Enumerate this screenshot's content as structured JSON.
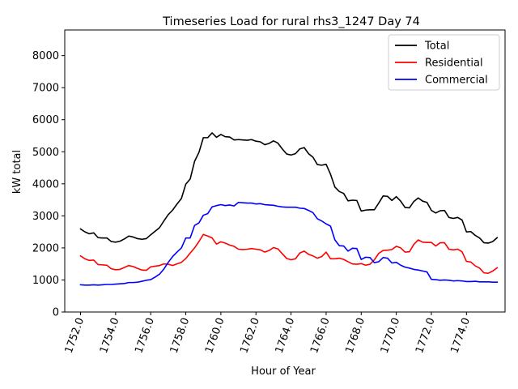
{
  "chart_data": {
    "type": "line",
    "title": "Timeseries Load for rural rhs3_1247  Day 74",
    "xlabel": "Hour of Year",
    "ylabel": "kW total",
    "xlim": [
      1751.1,
      1776.2
    ],
    "ylim": [
      0,
      8800
    ],
    "xticks": [
      1752,
      1754,
      1756,
      1758,
      1760,
      1762,
      1764,
      1766,
      1768,
      1770,
      1772,
      1774
    ],
    "xtick_labels": [
      "1752.0",
      "1754.0",
      "1756.0",
      "1758.0",
      "1760.0",
      "1762.0",
      "1764.0",
      "1766.0",
      "1768.0",
      "1770.0",
      "1772.0",
      "1774.0"
    ],
    "yticks": [
      0,
      1000,
      2000,
      3000,
      4000,
      5000,
      6000,
      7000,
      8000
    ],
    "ytick_labels": [
      "0",
      "1000",
      "2000",
      "3000",
      "4000",
      "5000",
      "6000",
      "7000",
      "8000"
    ],
    "legend": {
      "position": "top-right",
      "entries": [
        "Total",
        "Residential",
        "Commercial"
      ]
    },
    "series": [
      {
        "name": "Total",
        "color": "#000000",
        "points": [
          [
            1752.0,
            2590
          ],
          [
            1752.25,
            2500
          ],
          [
            1752.5,
            2440
          ],
          [
            1752.75,
            2470
          ],
          [
            1753.0,
            2320
          ],
          [
            1753.25,
            2310
          ],
          [
            1753.5,
            2310
          ],
          [
            1753.75,
            2200
          ],
          [
            1754.0,
            2180
          ],
          [
            1754.25,
            2210
          ],
          [
            1754.5,
            2280
          ],
          [
            1754.75,
            2370
          ],
          [
            1755.0,
            2340
          ],
          [
            1755.25,
            2290
          ],
          [
            1755.5,
            2270
          ],
          [
            1755.75,
            2290
          ],
          [
            1756.0,
            2410
          ],
          [
            1756.25,
            2520
          ],
          [
            1756.5,
            2630
          ],
          [
            1756.75,
            2840
          ],
          [
            1757.0,
            3040
          ],
          [
            1757.25,
            3180
          ],
          [
            1757.5,
            3370
          ],
          [
            1757.75,
            3540
          ],
          [
            1758.0,
            3990
          ],
          [
            1758.25,
            4150
          ],
          [
            1758.5,
            4700
          ],
          [
            1758.75,
            4980
          ],
          [
            1759.0,
            5440
          ],
          [
            1759.25,
            5440
          ],
          [
            1759.5,
            5590
          ],
          [
            1759.75,
            5450
          ],
          [
            1760.0,
            5540
          ],
          [
            1760.25,
            5470
          ],
          [
            1760.5,
            5460
          ],
          [
            1760.75,
            5370
          ],
          [
            1761.0,
            5380
          ],
          [
            1761.25,
            5370
          ],
          [
            1761.5,
            5360
          ],
          [
            1761.75,
            5380
          ],
          [
            1762.0,
            5330
          ],
          [
            1762.25,
            5310
          ],
          [
            1762.5,
            5220
          ],
          [
            1762.75,
            5260
          ],
          [
            1763.0,
            5340
          ],
          [
            1763.25,
            5270
          ],
          [
            1763.5,
            5090
          ],
          [
            1763.75,
            4930
          ],
          [
            1764.0,
            4900
          ],
          [
            1764.25,
            4940
          ],
          [
            1764.5,
            5090
          ],
          [
            1764.75,
            5130
          ],
          [
            1765.0,
            4940
          ],
          [
            1765.25,
            4830
          ],
          [
            1765.5,
            4600
          ],
          [
            1765.75,
            4580
          ],
          [
            1766.0,
            4610
          ],
          [
            1766.25,
            4300
          ],
          [
            1766.5,
            3900
          ],
          [
            1766.75,
            3760
          ],
          [
            1767.0,
            3700
          ],
          [
            1767.25,
            3470
          ],
          [
            1767.5,
            3490
          ],
          [
            1767.75,
            3480
          ],
          [
            1768.0,
            3150
          ],
          [
            1768.25,
            3180
          ],
          [
            1768.5,
            3190
          ],
          [
            1768.75,
            3190
          ],
          [
            1769.0,
            3400
          ],
          [
            1769.25,
            3620
          ],
          [
            1769.5,
            3610
          ],
          [
            1769.75,
            3480
          ],
          [
            1770.0,
            3600
          ],
          [
            1770.25,
            3460
          ],
          [
            1770.5,
            3260
          ],
          [
            1770.75,
            3250
          ],
          [
            1771.0,
            3450
          ],
          [
            1771.25,
            3560
          ],
          [
            1771.5,
            3460
          ],
          [
            1771.75,
            3420
          ],
          [
            1772.0,
            3170
          ],
          [
            1772.25,
            3090
          ],
          [
            1772.5,
            3160
          ],
          [
            1772.75,
            3170
          ],
          [
            1773.0,
            2950
          ],
          [
            1773.25,
            2920
          ],
          [
            1773.5,
            2950
          ],
          [
            1773.75,
            2870
          ],
          [
            1774.0,
            2500
          ],
          [
            1774.25,
            2510
          ],
          [
            1774.5,
            2390
          ],
          [
            1774.75,
            2310
          ],
          [
            1775.0,
            2160
          ],
          [
            1775.25,
            2150
          ],
          [
            1775.5,
            2200
          ],
          [
            1775.75,
            2320
          ]
        ]
      },
      {
        "name": "Residential",
        "color": "#ff0000",
        "points": [
          [
            1752.0,
            1750
          ],
          [
            1752.25,
            1660
          ],
          [
            1752.5,
            1610
          ],
          [
            1752.75,
            1620
          ],
          [
            1753.0,
            1480
          ],
          [
            1753.25,
            1470
          ],
          [
            1753.5,
            1460
          ],
          [
            1753.75,
            1350
          ],
          [
            1754.0,
            1320
          ],
          [
            1754.25,
            1330
          ],
          [
            1754.5,
            1390
          ],
          [
            1754.75,
            1450
          ],
          [
            1755.0,
            1420
          ],
          [
            1755.25,
            1360
          ],
          [
            1755.5,
            1310
          ],
          [
            1755.75,
            1300
          ],
          [
            1756.0,
            1410
          ],
          [
            1756.25,
            1430
          ],
          [
            1756.5,
            1450
          ],
          [
            1756.75,
            1500
          ],
          [
            1757.0,
            1490
          ],
          [
            1757.25,
            1450
          ],
          [
            1757.5,
            1500
          ],
          [
            1757.75,
            1550
          ],
          [
            1758.0,
            1670
          ],
          [
            1758.25,
            1840
          ],
          [
            1758.5,
            2000
          ],
          [
            1758.75,
            2200
          ],
          [
            1759.0,
            2420
          ],
          [
            1759.25,
            2370
          ],
          [
            1759.5,
            2310
          ],
          [
            1759.75,
            2120
          ],
          [
            1760.0,
            2190
          ],
          [
            1760.25,
            2150
          ],
          [
            1760.5,
            2090
          ],
          [
            1760.75,
            2050
          ],
          [
            1761.0,
            1960
          ],
          [
            1761.25,
            1950
          ],
          [
            1761.5,
            1960
          ],
          [
            1761.75,
            1980
          ],
          [
            1762.0,
            1960
          ],
          [
            1762.25,
            1940
          ],
          [
            1762.5,
            1870
          ],
          [
            1762.75,
            1920
          ],
          [
            1763.0,
            2010
          ],
          [
            1763.25,
            1970
          ],
          [
            1763.5,
            1820
          ],
          [
            1763.75,
            1670
          ],
          [
            1764.0,
            1630
          ],
          [
            1764.25,
            1660
          ],
          [
            1764.5,
            1840
          ],
          [
            1764.75,
            1900
          ],
          [
            1765.0,
            1800
          ],
          [
            1765.25,
            1750
          ],
          [
            1765.5,
            1680
          ],
          [
            1765.75,
            1730
          ],
          [
            1766.0,
            1870
          ],
          [
            1766.25,
            1660
          ],
          [
            1766.5,
            1660
          ],
          [
            1766.75,
            1680
          ],
          [
            1767.0,
            1640
          ],
          [
            1767.25,
            1570
          ],
          [
            1767.5,
            1500
          ],
          [
            1767.75,
            1490
          ],
          [
            1768.0,
            1510
          ],
          [
            1768.25,
            1460
          ],
          [
            1768.5,
            1490
          ],
          [
            1768.75,
            1630
          ],
          [
            1769.0,
            1830
          ],
          [
            1769.25,
            1920
          ],
          [
            1769.5,
            1930
          ],
          [
            1769.75,
            1950
          ],
          [
            1770.0,
            2050
          ],
          [
            1770.25,
            2000
          ],
          [
            1770.5,
            1870
          ],
          [
            1770.75,
            1880
          ],
          [
            1771.0,
            2110
          ],
          [
            1771.25,
            2250
          ],
          [
            1771.5,
            2180
          ],
          [
            1771.75,
            2170
          ],
          [
            1772.0,
            2170
          ],
          [
            1772.25,
            2060
          ],
          [
            1772.5,
            2160
          ],
          [
            1772.75,
            2160
          ],
          [
            1773.0,
            1960
          ],
          [
            1773.25,
            1940
          ],
          [
            1773.5,
            1960
          ],
          [
            1773.75,
            1880
          ],
          [
            1774.0,
            1580
          ],
          [
            1774.25,
            1560
          ],
          [
            1774.5,
            1440
          ],
          [
            1774.75,
            1370
          ],
          [
            1775.0,
            1220
          ],
          [
            1775.25,
            1210
          ],
          [
            1775.5,
            1280
          ],
          [
            1775.75,
            1380
          ]
        ]
      },
      {
        "name": "Commercial",
        "color": "#0000ff",
        "points": [
          [
            1752.0,
            850
          ],
          [
            1752.25,
            840
          ],
          [
            1752.5,
            840
          ],
          [
            1752.75,
            850
          ],
          [
            1753.0,
            840
          ],
          [
            1753.25,
            850
          ],
          [
            1753.5,
            860
          ],
          [
            1753.75,
            860
          ],
          [
            1754.0,
            870
          ],
          [
            1754.25,
            880
          ],
          [
            1754.5,
            890
          ],
          [
            1754.75,
            920
          ],
          [
            1755.0,
            920
          ],
          [
            1755.25,
            930
          ],
          [
            1755.5,
            960
          ],
          [
            1755.75,
            990
          ],
          [
            1756.0,
            1010
          ],
          [
            1756.25,
            1090
          ],
          [
            1756.5,
            1180
          ],
          [
            1756.75,
            1340
          ],
          [
            1757.0,
            1550
          ],
          [
            1757.25,
            1730
          ],
          [
            1757.5,
            1870
          ],
          [
            1757.75,
            2000
          ],
          [
            1758.0,
            2310
          ],
          [
            1758.25,
            2310
          ],
          [
            1758.5,
            2700
          ],
          [
            1758.75,
            2780
          ],
          [
            1759.0,
            3020
          ],
          [
            1759.25,
            3070
          ],
          [
            1759.5,
            3280
          ],
          [
            1759.75,
            3320
          ],
          [
            1760.0,
            3350
          ],
          [
            1760.25,
            3320
          ],
          [
            1760.5,
            3340
          ],
          [
            1760.75,
            3310
          ],
          [
            1761.0,
            3420
          ],
          [
            1761.25,
            3410
          ],
          [
            1761.5,
            3400
          ],
          [
            1761.75,
            3400
          ],
          [
            1762.0,
            3370
          ],
          [
            1762.25,
            3380
          ],
          [
            1762.5,
            3350
          ],
          [
            1762.75,
            3340
          ],
          [
            1763.0,
            3330
          ],
          [
            1763.25,
            3300
          ],
          [
            1763.5,
            3280
          ],
          [
            1763.75,
            3270
          ],
          [
            1764.0,
            3270
          ],
          [
            1764.25,
            3270
          ],
          [
            1764.5,
            3240
          ],
          [
            1764.75,
            3230
          ],
          [
            1765.0,
            3170
          ],
          [
            1765.25,
            3100
          ],
          [
            1765.5,
            2910
          ],
          [
            1765.75,
            2840
          ],
          [
            1766.0,
            2750
          ],
          [
            1766.25,
            2680
          ],
          [
            1766.5,
            2250
          ],
          [
            1766.75,
            2070
          ],
          [
            1767.0,
            2060
          ],
          [
            1767.25,
            1900
          ],
          [
            1767.5,
            1990
          ],
          [
            1767.75,
            1980
          ],
          [
            1768.0,
            1640
          ],
          [
            1768.25,
            1710
          ],
          [
            1768.5,
            1700
          ],
          [
            1768.75,
            1540
          ],
          [
            1769.0,
            1570
          ],
          [
            1769.25,
            1700
          ],
          [
            1769.5,
            1680
          ],
          [
            1769.75,
            1530
          ],
          [
            1770.0,
            1550
          ],
          [
            1770.25,
            1460
          ],
          [
            1770.5,
            1400
          ],
          [
            1770.75,
            1370
          ],
          [
            1771.0,
            1330
          ],
          [
            1771.25,
            1310
          ],
          [
            1771.5,
            1280
          ],
          [
            1771.75,
            1250
          ],
          [
            1772.0,
            1020
          ],
          [
            1772.25,
            1010
          ],
          [
            1772.5,
            990
          ],
          [
            1772.75,
            1000
          ],
          [
            1773.0,
            990
          ],
          [
            1773.25,
            970
          ],
          [
            1773.5,
            980
          ],
          [
            1773.75,
            970
          ],
          [
            1774.0,
            950
          ],
          [
            1774.25,
            950
          ],
          [
            1774.5,
            960
          ],
          [
            1774.75,
            940
          ],
          [
            1775.0,
            940
          ],
          [
            1775.25,
            940
          ],
          [
            1775.5,
            930
          ],
          [
            1775.75,
            930
          ]
        ]
      }
    ]
  }
}
